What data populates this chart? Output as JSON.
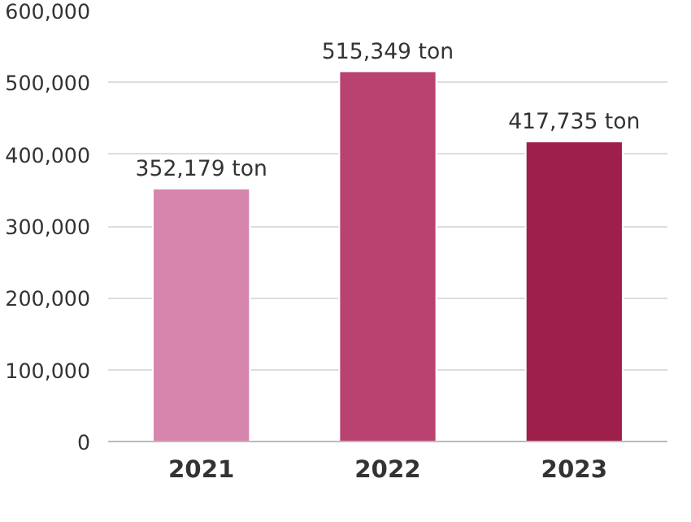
{
  "chart_data": {
    "type": "bar",
    "categories": [
      "2021",
      "2022",
      "2023"
    ],
    "values": [
      352179,
      515349,
      417735
    ],
    "colors": [
      "#d685ad",
      "#b94271",
      "#9e1f4b"
    ],
    "value_labels": [
      "352,179 ton",
      "515,349 ton",
      "417,735 ton"
    ],
    "ylim": [
      0,
      600000
    ],
    "yticks": [
      {
        "value": 0,
        "label": "0"
      },
      {
        "value": 100000,
        "label": "100,000"
      },
      {
        "value": 200000,
        "label": "200,000"
      },
      {
        "value": 300000,
        "label": "300,000"
      },
      {
        "value": 400000,
        "label": "400,000"
      },
      {
        "value": 500000,
        "label": "500,000"
      },
      {
        "value": 600000,
        "label": "600,000"
      }
    ],
    "grid": "y"
  }
}
